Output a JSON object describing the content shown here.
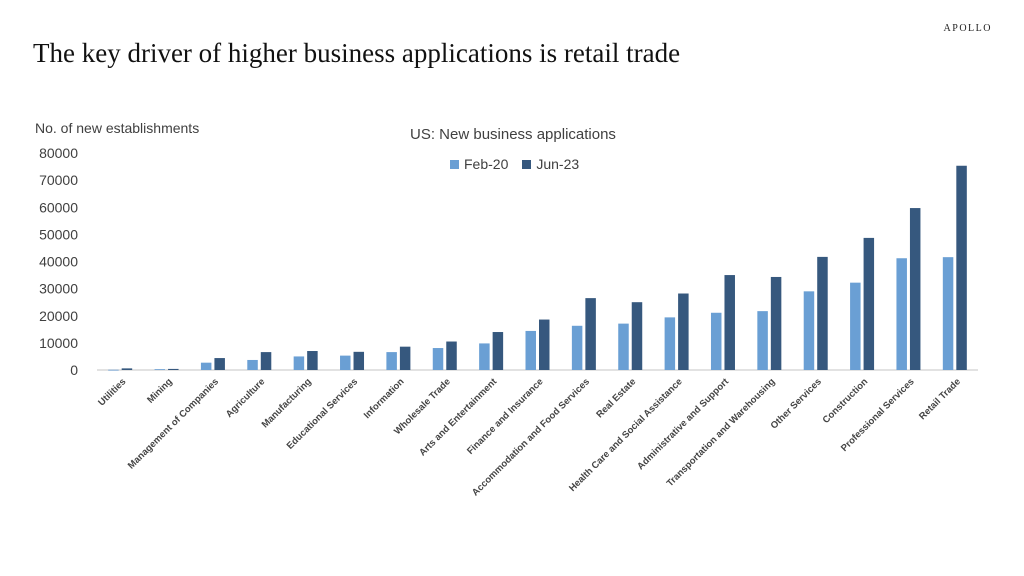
{
  "header": {
    "brand": "APOLLO",
    "title": "The key driver of higher business applications is retail trade"
  },
  "colors": {
    "feb20": "#6a9fd4",
    "jun23": "#36587e",
    "axis": "#d9d9d9"
  },
  "chart_data": {
    "type": "bar",
    "title": "US: New business applications",
    "xlabel": "",
    "ylabel": "No. of new establishments",
    "ylim": [
      0,
      80000
    ],
    "yticks": [
      0,
      10000,
      20000,
      30000,
      40000,
      50000,
      60000,
      70000,
      80000
    ],
    "grid": false,
    "legend_position": "top",
    "categories": [
      "Utilities",
      "Mining",
      "Management of Companies",
      "Agriculture",
      "Manufacturing",
      "Educational Services",
      "Information",
      "Wholesale Trade",
      "Arts and Entertainment",
      "Finance and Insurance",
      "Accommodation and Food Services",
      "Real Estate",
      "Health Care and Social Assistance",
      "Administrative and Support",
      "Transportation and Warehousing",
      "Other Services",
      "Construction",
      "Professional Services",
      "Retail Trade"
    ],
    "series": [
      {
        "name": "Feb-20",
        "values": [
          100,
          300,
          2700,
          3700,
          5000,
          5300,
          6600,
          8100,
          9800,
          14400,
          16300,
          17100,
          19400,
          21100,
          21700,
          29000,
          32200,
          41200,
          41600
        ]
      },
      {
        "name": "Jun-23",
        "values": [
          600,
          400,
          4400,
          6600,
          7000,
          6700,
          8600,
          10500,
          14000,
          18600,
          26500,
          25000,
          28200,
          35000,
          34300,
          41700,
          48700,
          59700,
          75300
        ]
      }
    ]
  }
}
